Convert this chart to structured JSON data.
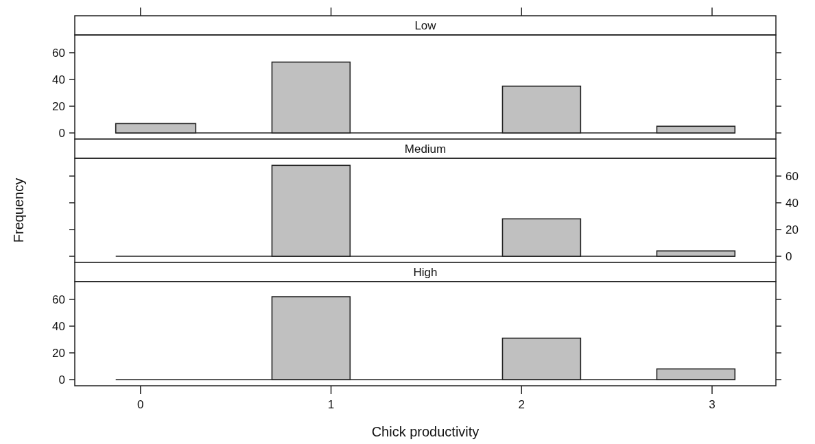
{
  "chart_data": [
    {
      "type": "histogram",
      "title": "Low",
      "bins": [
        -0.13,
        0.29,
        0.69,
        1.1,
        1.9,
        2.31,
        2.71,
        3.12
      ],
      "values": [
        7,
        0,
        53,
        0,
        35,
        0,
        5
      ],
      "color": "#c0c0c0",
      "xlim": [
        -0.345,
        3.335
      ],
      "xticks": [
        0,
        1,
        2,
        3
      ],
      "ylim": [
        -4.6,
        73.3
      ],
      "yticks": [
        0,
        20,
        40,
        60
      ],
      "tick_labels": "y"
    },
    {
      "type": "histogram",
      "title": "Medium",
      "ylabel": "Frequency",
      "bins": [
        0.69,
        1.1,
        1.9,
        2.31,
        2.71,
        3.12
      ],
      "values": [
        68,
        0,
        28,
        0,
        4
      ],
      "color": "#c0c0c0",
      "xlim": [
        -0.345,
        3.335
      ],
      "ylim": [
        -4.6,
        73.3
      ],
      "yticks": [
        0,
        20,
        40,
        60
      ],
      "tick_labels": "y"
    },
    {
      "type": "histogram",
      "title": "High",
      "xlabel": "Chick productivity",
      "bins": [
        0.69,
        1.1,
        1.9,
        2.31,
        2.71,
        3.12
      ],
      "values": [
        62,
        0,
        31,
        0,
        8
      ],
      "color": "#c0c0c0",
      "xlim": [
        -0.345,
        3.335
      ],
      "xticks": [
        0,
        1,
        2,
        3
      ],
      "ylim": [
        -4.6,
        73.3
      ],
      "yticks": [
        0,
        20,
        40,
        60
      ]
    }
  ]
}
